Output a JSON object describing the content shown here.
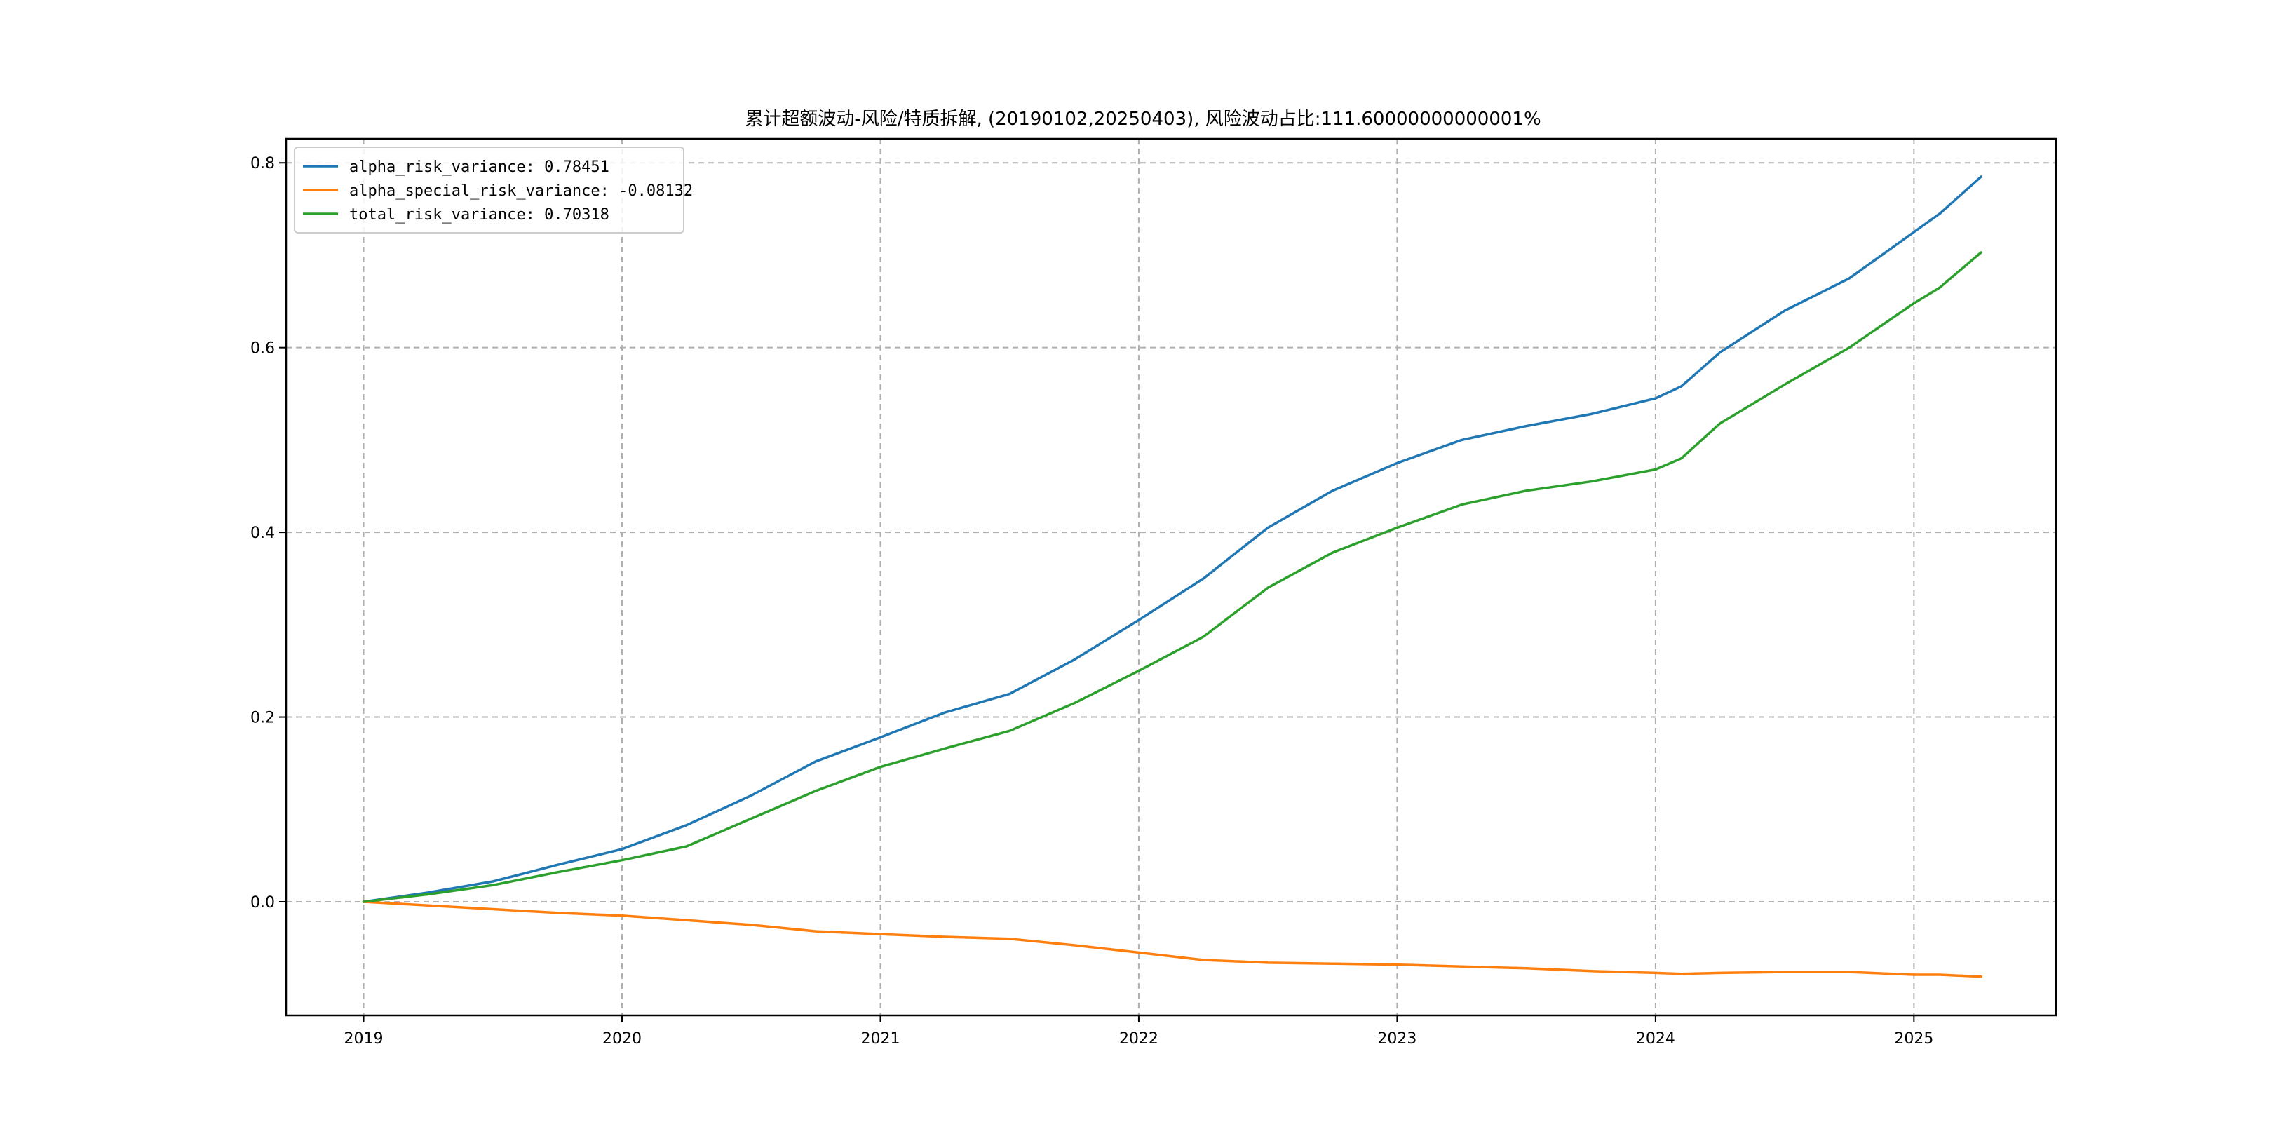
{
  "chart_data": {
    "type": "line",
    "title": "累计超额波动-风险/特质拆解, (20190102,20250403), 风险波动占比:111.60000000000001%",
    "xlabel": "",
    "ylabel": "",
    "x_ticks": [
      "2019",
      "2020",
      "2021",
      "2022",
      "2023",
      "2024",
      "2025"
    ],
    "x_range": [
      2018.7,
      2025.55
    ],
    "y_ticks": [
      "0.0",
      "0.2",
      "0.4",
      "0.6",
      "0.8"
    ],
    "y_tick_values": [
      0.0,
      0.2,
      0.4,
      0.6,
      0.8
    ],
    "ylim": [
      -0.123,
      0.826
    ],
    "grid": true,
    "legend_position": "top-left",
    "x": [
      2019.0,
      2019.25,
      2019.5,
      2019.75,
      2020.0,
      2020.25,
      2020.5,
      2020.75,
      2021.0,
      2021.25,
      2021.5,
      2021.75,
      2022.0,
      2022.25,
      2022.5,
      2022.75,
      2023.0,
      2023.25,
      2023.5,
      2023.75,
      2024.0,
      2024.1,
      2024.25,
      2024.5,
      2024.75,
      2025.0,
      2025.1,
      2025.26
    ],
    "series": [
      {
        "name": "alpha_risk_variance: 0.78451",
        "color": "#1f77b4",
        "values": [
          0.0,
          0.01,
          0.022,
          0.04,
          0.057,
          0.083,
          0.115,
          0.152,
          0.178,
          0.205,
          0.225,
          0.262,
          0.305,
          0.35,
          0.405,
          0.445,
          0.475,
          0.5,
          0.515,
          0.528,
          0.545,
          0.558,
          0.595,
          0.64,
          0.675,
          0.725,
          0.745,
          0.785
        ]
      },
      {
        "name": "alpha_special_risk_variance: -0.08132",
        "color": "#ff7f0e",
        "values": [
          0.0,
          -0.004,
          -0.008,
          -0.012,
          -0.015,
          -0.02,
          -0.025,
          -0.032,
          -0.035,
          -0.038,
          -0.04,
          -0.047,
          -0.055,
          -0.063,
          -0.066,
          -0.067,
          -0.068,
          -0.07,
          -0.072,
          -0.075,
          -0.077,
          -0.078,
          -0.077,
          -0.076,
          -0.076,
          -0.079,
          -0.079,
          -0.081
        ]
      },
      {
        "name": "total_risk_variance: 0.70318",
        "color": "#2ca02c",
        "values": [
          0.0,
          0.008,
          0.018,
          0.032,
          0.045,
          0.06,
          0.09,
          0.12,
          0.146,
          0.166,
          0.185,
          0.215,
          0.25,
          0.287,
          0.34,
          0.378,
          0.405,
          0.43,
          0.445,
          0.455,
          0.468,
          0.48,
          0.518,
          0.56,
          0.6,
          0.648,
          0.665,
          0.703
        ]
      }
    ]
  }
}
